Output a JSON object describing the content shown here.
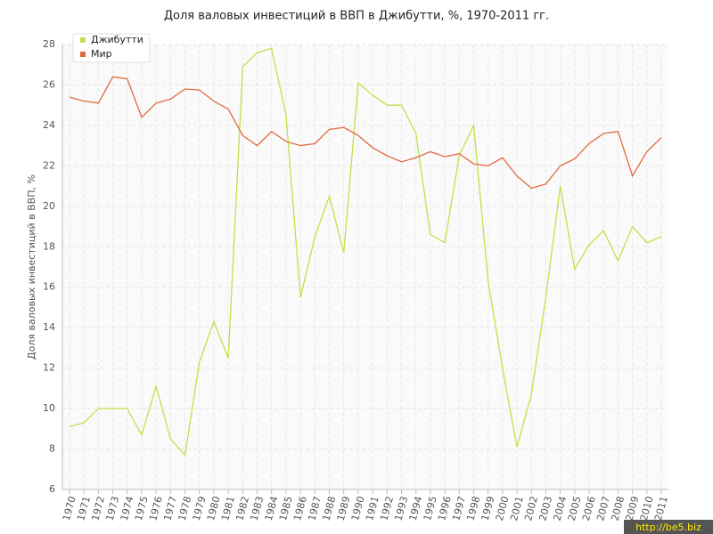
{
  "chart_data": {
    "type": "line",
    "title": "Доля валовых инвестиций в ВВП в Джибутти, %, 1970-2011 гг.",
    "y_label": "Доля валовых инвестиций в ВВП, %",
    "categories": [
      "1970",
      "1971",
      "1972",
      "1973",
      "1974",
      "1975",
      "1976",
      "1977",
      "1978",
      "1979",
      "1980",
      "1981",
      "1982",
      "1983",
      "1984",
      "1985",
      "1986",
      "1987",
      "1988",
      "1989",
      "1990",
      "1991",
      "1992",
      "1993",
      "1994",
      "1995",
      "1996",
      "1997",
      "1998",
      "1999",
      "2000",
      "2001",
      "2002",
      "2003",
      "2004",
      "2005",
      "2006",
      "2007",
      "2008",
      "2009",
      "2010",
      "2011"
    ],
    "series": [
      {
        "name": "Джибутти",
        "color": "#c2e04a",
        "values": [
          9.1,
          9.3,
          10.0,
          10.0,
          10.0,
          8.7,
          11.1,
          8.5,
          7.7,
          12.3,
          14.3,
          12.5,
          26.9,
          27.6,
          27.8,
          24.5,
          15.5,
          18.5,
          20.5,
          17.7,
          26.1,
          25.5,
          25.0,
          25.0,
          23.6,
          18.6,
          18.2,
          22.5,
          24.0,
          16.3,
          12.0,
          8.1,
          10.7,
          15.5,
          21.0,
          16.9,
          18.1,
          18.8,
          17.3,
          19.0,
          18.2,
          18.5
        ]
      },
      {
        "name": "Мир",
        "color": "#e2693f",
        "values": [
          25.4,
          25.2,
          25.1,
          26.4,
          26.3,
          24.4,
          25.1,
          25.3,
          25.8,
          25.75,
          25.2,
          24.8,
          23.5,
          23.0,
          23.7,
          23.2,
          23.0,
          23.1,
          23.8,
          23.9,
          23.5,
          22.9,
          22.5,
          22.2,
          22.4,
          22.7,
          22.45,
          22.6,
          22.1,
          22.0,
          22.4,
          21.5,
          20.9,
          21.1,
          22.0,
          22.35,
          23.1,
          23.6,
          23.7,
          21.5,
          22.7,
          23.4
        ]
      }
    ],
    "ylim": [
      6,
      28
    ],
    "yticks": [
      6,
      8,
      10,
      12,
      14,
      16,
      18,
      20,
      22,
      24,
      26,
      28
    ],
    "grid": true,
    "legend": "top-left",
    "watermark": "http://be5.biz"
  }
}
